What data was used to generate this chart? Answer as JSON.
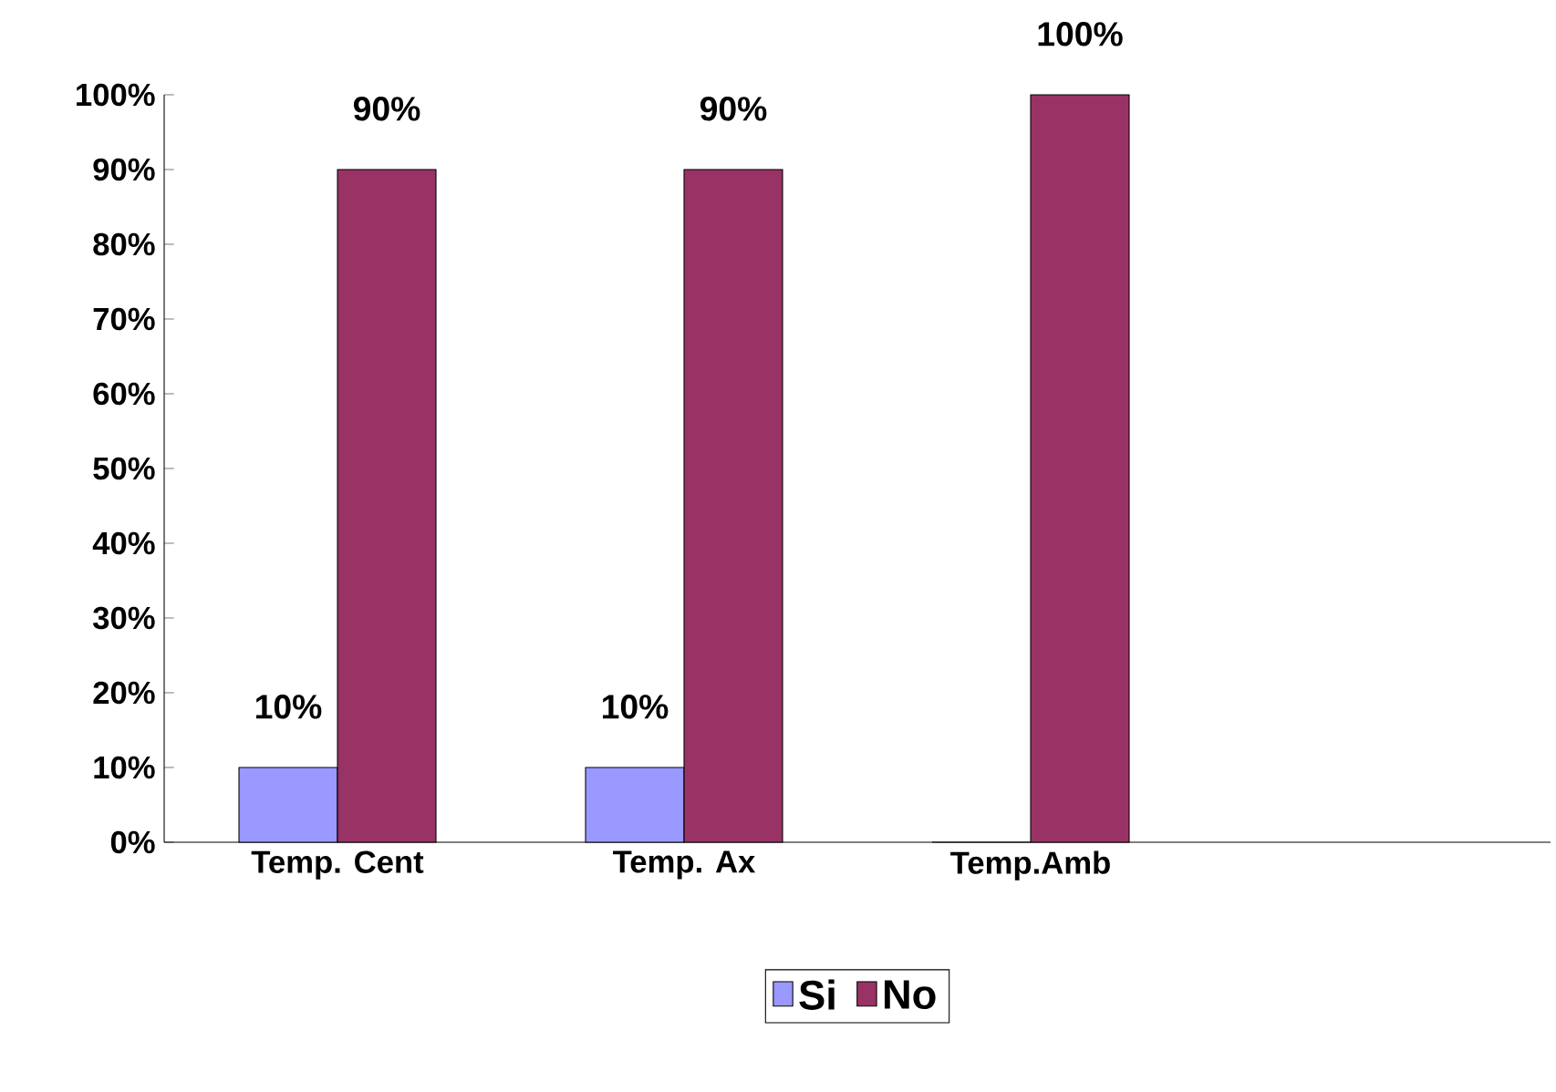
{
  "chart_data": {
    "type": "bar",
    "categories": [
      "Temp. Cent",
      "Temp. Ax",
      "Temp.Amb",
      null
    ],
    "series": [
      {
        "name": "Si",
        "color": "#9999ff",
        "values": [
          10,
          10,
          0,
          null
        ],
        "value_labels": [
          "10%",
          "10%",
          null,
          null
        ]
      },
      {
        "name": "No",
        "color": "#993366",
        "values": [
          90,
          90,
          100,
          null
        ],
        "value_labels": [
          "90%",
          "90%",
          "100%",
          null
        ]
      }
    ],
    "ylim": [
      0,
      100
    ],
    "yticks": [
      {
        "value": 0,
        "label": "0%"
      },
      {
        "value": 10,
        "label": "10%"
      },
      {
        "value": 20,
        "label": "20%"
      },
      {
        "value": 30,
        "label": "30%"
      },
      {
        "value": 40,
        "label": "40%"
      },
      {
        "value": 50,
        "label": "50%"
      },
      {
        "value": 60,
        "label": "60%"
      },
      {
        "value": 70,
        "label": "70%"
      },
      {
        "value": 80,
        "label": "80%"
      },
      {
        "value": 90,
        "label": "90%"
      },
      {
        "value": 100,
        "label": "100%"
      }
    ],
    "grid": false,
    "legend": "bottom"
  }
}
